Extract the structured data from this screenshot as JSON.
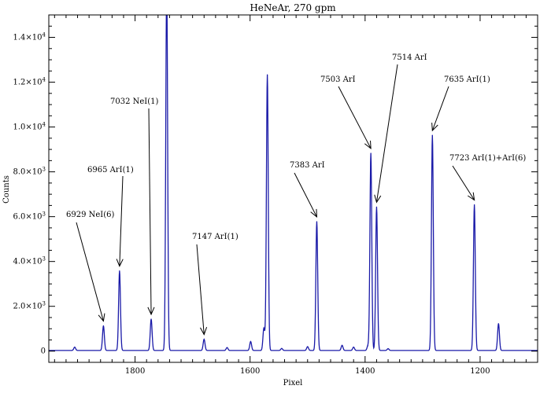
{
  "chart_data": {
    "type": "line",
    "title": "HeNeAr, 270 gpm",
    "xlabel": "Pixel",
    "ylabel": "Counts",
    "xlim": [
      1950,
      1100
    ],
    "ylim": [
      -500,
      15000
    ],
    "x_reversed": true,
    "x_ticks": [
      1800,
      1600,
      1400,
      1200
    ],
    "x_tick_labels": [
      "1800",
      "1600",
      "1400",
      "1200"
    ],
    "y_ticks": [
      0,
      2000,
      4000,
      6000,
      8000,
      10000,
      12000,
      14000
    ],
    "y_tick_labels": [
      {
        "mant": "0",
        "exp": ""
      },
      {
        "mant": "2.0×10",
        "exp": "3"
      },
      {
        "mant": "4.0×10",
        "exp": "3"
      },
      {
        "mant": "6.0×10",
        "exp": "3"
      },
      {
        "mant": "8.0×10",
        "exp": "3"
      },
      {
        "mant": "1.0×10",
        "exp": "4"
      },
      {
        "mant": "1.2×10",
        "exp": "4"
      },
      {
        "mant": "1.4×10",
        "exp": "4"
      }
    ],
    "line_color": "#1a1aa8",
    "baseline": 30,
    "peaks": [
      {
        "x": 1905,
        "y": 150
      },
      {
        "x": 1855,
        "y": 1100
      },
      {
        "x": 1827,
        "y": 3550
      },
      {
        "x": 1772,
        "y": 1400
      },
      {
        "x": 1745,
        "y": 16500
      },
      {
        "x": 1680,
        "y": 500
      },
      {
        "x": 1640,
        "y": 130
      },
      {
        "x": 1599,
        "y": 400
      },
      {
        "x": 1576,
        "y": 1000
      },
      {
        "x": 1570,
        "y": 12300
      },
      {
        "x": 1545,
        "y": 90
      },
      {
        "x": 1500,
        "y": 170
      },
      {
        "x": 1484,
        "y": 5750
      },
      {
        "x": 1440,
        "y": 230
      },
      {
        "x": 1420,
        "y": 150
      },
      {
        "x": 1395,
        "y": 210
      },
      {
        "x": 1390,
        "y": 8800
      },
      {
        "x": 1380,
        "y": 6400
      },
      {
        "x": 1360,
        "y": 80
      },
      {
        "x": 1283,
        "y": 9600
      },
      {
        "x": 1210,
        "y": 6500
      },
      {
        "x": 1168,
        "y": 1200
      }
    ],
    "annotations": [
      {
        "text": "6929 NeI(6)",
        "x": 1855,
        "y": 1100
      },
      {
        "text": "6965 ArI(1)",
        "x": 1827,
        "y": 3550
      },
      {
        "text": "7032 NeI(1)",
        "x": 1772,
        "y": 1400
      },
      {
        "text": "7147 ArI(1)",
        "x": 1680,
        "y": 500
      },
      {
        "text": "7383 ArI",
        "x": 1484,
        "y": 5750
      },
      {
        "text": "7503 ArI",
        "x": 1390,
        "y": 8800
      },
      {
        "text": "7514 ArI",
        "x": 1380,
        "y": 6400
      },
      {
        "text": "7635 ArI(1)",
        "x": 1283,
        "y": 9600
      },
      {
        "text": "7723 ArI(1)+ArI(6)",
        "x": 1210,
        "y": 6500
      }
    ]
  }
}
